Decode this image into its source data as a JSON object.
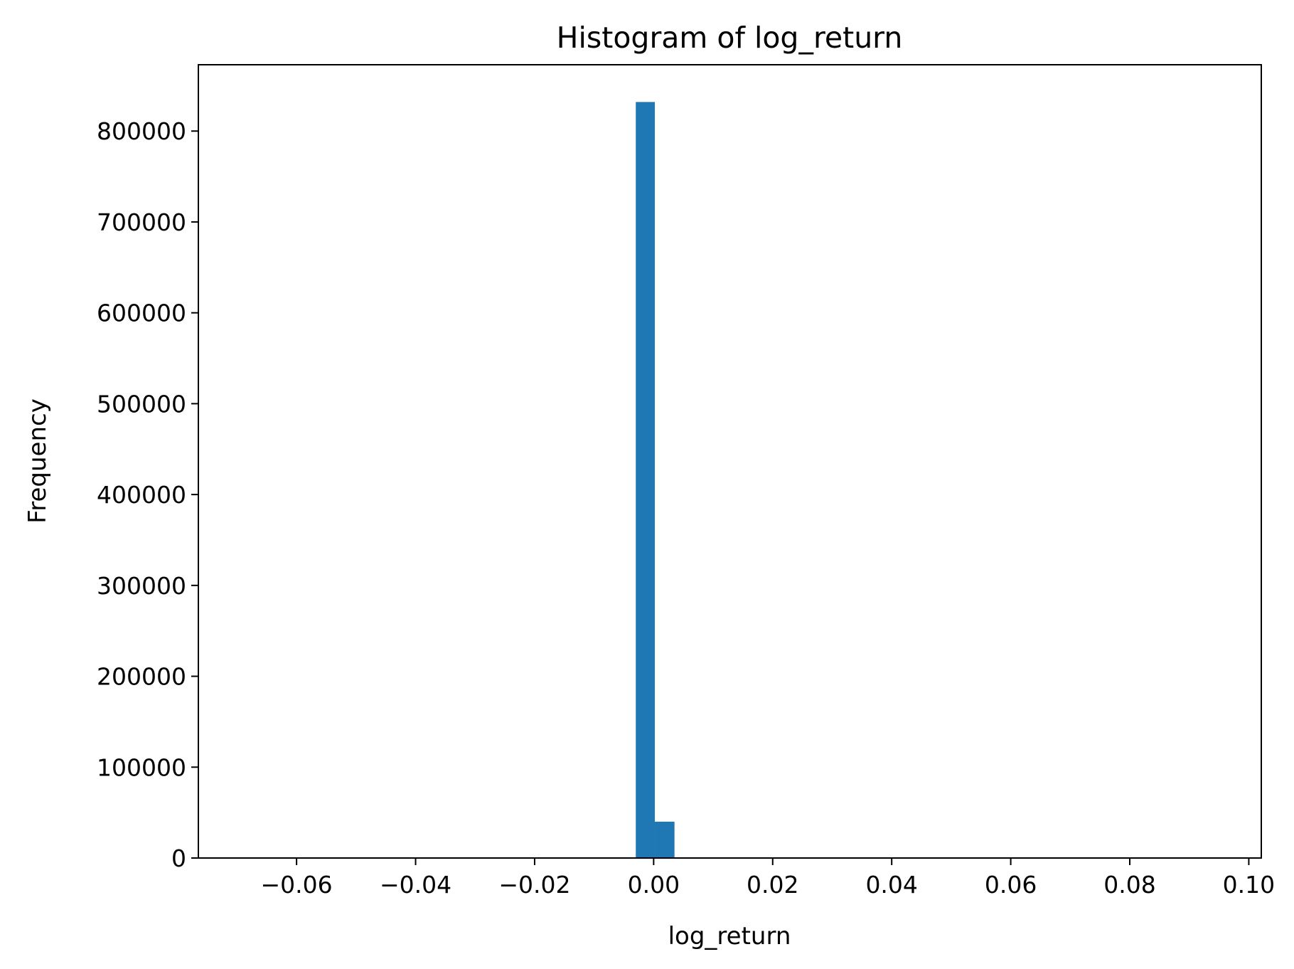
{
  "chart_data": {
    "type": "bar",
    "title": "Histogram of log_return",
    "xlabel": "log_return",
    "ylabel": "Frequency",
    "xlim": [
      -0.0765,
      0.1021
    ],
    "ylim": [
      0,
      873000
    ],
    "x_ticks": [
      -0.06,
      -0.04,
      -0.02,
      0.0,
      0.02,
      0.04,
      0.06,
      0.08,
      0.1
    ],
    "x_tick_labels": [
      "−0.06",
      "−0.04",
      "−0.02",
      "0.00",
      "0.02",
      "0.04",
      "0.06",
      "0.08",
      "0.10"
    ],
    "y_ticks": [
      0,
      100000,
      200000,
      300000,
      400000,
      500000,
      600000,
      700000,
      800000
    ],
    "y_tick_labels": [
      "0",
      "100000",
      "200000",
      "300000",
      "400000",
      "500000",
      "600000",
      "700000",
      "800000"
    ],
    "bars": [
      {
        "x0": -0.003,
        "x1": 0.0002,
        "value": 832000
      },
      {
        "x0": 0.0002,
        "x1": 0.0035,
        "value": 40000
      }
    ],
    "bar_color": "#1f77b4",
    "grid": false,
    "legend": "none"
  }
}
